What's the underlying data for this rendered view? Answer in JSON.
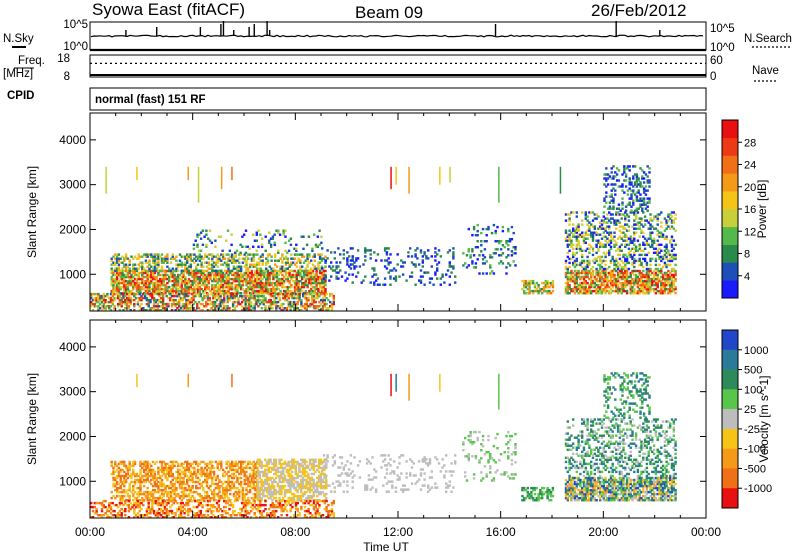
{
  "header": {
    "title": "Syowa East (fitACF)",
    "beam": "Beam 09",
    "date": "26/Feb/2012"
  },
  "left_labels": {
    "nsky": "N.Sky",
    "freq": "Freq.",
    "freq_unit": "[MHz]",
    "cpid": "CPID"
  },
  "right_labels": {
    "nsearch": "N.Search",
    "nave": "Nave"
  },
  "noise_panel": {
    "left_ticks": [
      "10^5",
      "10^0"
    ],
    "right_ticks": [
      "10^5",
      "10^0"
    ]
  },
  "freq_panel": {
    "left_ticks": [
      "18",
      "8"
    ],
    "right_ticks": [
      "60",
      "0"
    ],
    "freq_mhz": 10.5,
    "nave": 37
  },
  "cpid_text": "normal (fast) 151 RF",
  "chart_data": [
    {
      "type": "heatmap",
      "parameter": "Power",
      "ylabel": "Slant Range [km]",
      "ylim": [
        180,
        4600
      ],
      "y_ticks": [
        "1000",
        "2000",
        "3000",
        "4000"
      ],
      "colorbar": {
        "label": "Power [dB]",
        "ticks": [
          "4",
          "8",
          "12",
          "16",
          "20",
          "24",
          "28"
        ],
        "colors": [
          "#1a1aff",
          "#1e4fb8",
          "#2a8a4a",
          "#55b84a",
          "#c8cf3a",
          "#f5c418",
          "#f59a18",
          "#f07018",
          "#ee3a14",
          "#e81010"
        ]
      },
      "regions": [
        {
          "t": [
            0.8,
            9.2
          ],
          "r": [
            560,
            1060
          ],
          "color_range": [
            2,
            9
          ],
          "density": 0.75
        },
        {
          "t": [
            0.8,
            9.2
          ],
          "r": [
            1060,
            1460
          ],
          "color_range": [
            1,
            6
          ],
          "density": 0.45
        },
        {
          "t": [
            4.0,
            9.0
          ],
          "r": [
            1460,
            2000
          ],
          "color_range": [
            0,
            4
          ],
          "density": 0.12
        },
        {
          "t": [
            9.0,
            14.2
          ],
          "r": [
            750,
            1600
          ],
          "color_range": [
            0,
            2
          ],
          "density": 0.15
        },
        {
          "t": [
            14.5,
            16.6
          ],
          "r": [
            1000,
            2100
          ],
          "color_range": [
            0,
            3
          ],
          "density": 0.15
        },
        {
          "t": [
            16.8,
            18.0
          ],
          "r": [
            560,
            850
          ],
          "color_range": [
            2,
            7
          ],
          "density": 0.6
        },
        {
          "t": [
            18.5,
            22.8
          ],
          "r": [
            560,
            1100
          ],
          "color_range": [
            2,
            9
          ],
          "density": 0.72
        },
        {
          "t": [
            18.5,
            22.8
          ],
          "r": [
            1100,
            2400
          ],
          "color_range": [
            0,
            5
          ],
          "density": 0.35
        },
        {
          "t": [
            20.0,
            21.8
          ],
          "r": [
            2400,
            3400
          ],
          "color_range": [
            0,
            3
          ],
          "density": 0.3
        },
        {
          "t": [
            0.0,
            9.5
          ],
          "r": [
            180,
            560
          ],
          "color_range": [
            1,
            9
          ],
          "density": 0.55
        }
      ],
      "spikes": [
        {
          "t": 0.6,
          "r": [
            2800,
            3400
          ],
          "color": 4
        },
        {
          "t": 1.8,
          "r": [
            3100,
            3400
          ],
          "color": 5
        },
        {
          "t": 3.8,
          "r": [
            3100,
            3400
          ],
          "color": 6
        },
        {
          "t": 4.2,
          "r": [
            2600,
            3400
          ],
          "color": 4
        },
        {
          "t": 5.1,
          "r": [
            2900,
            3400
          ],
          "color": 6
        },
        {
          "t": 5.5,
          "r": [
            3100,
            3400
          ],
          "color": 7
        },
        {
          "t": 11.7,
          "r": [
            2900,
            3400
          ],
          "color": 9
        },
        {
          "t": 11.9,
          "r": [
            3000,
            3400
          ],
          "color": 5
        },
        {
          "t": 12.4,
          "r": [
            2800,
            3400
          ],
          "color": 6
        },
        {
          "t": 13.6,
          "r": [
            3000,
            3400
          ],
          "color": 5
        },
        {
          "t": 14.0,
          "r": [
            3050,
            3400
          ],
          "color": 4
        },
        {
          "t": 15.9,
          "r": [
            2600,
            3400
          ],
          "color": 3
        },
        {
          "t": 18.3,
          "r": [
            2800,
            3400
          ],
          "color": 2
        }
      ]
    },
    {
      "type": "heatmap",
      "parameter": "Velocity",
      "ylabel": "Slant Range [km]",
      "ylim": [
        180,
        4600
      ],
      "y_ticks": [
        "1000",
        "2000",
        "3000",
        "4000"
      ],
      "colorbar": {
        "label": "Velocity [m s^-1]",
        "ticks": [
          "1000",
          "500",
          "100",
          "25",
          "-25",
          "-100",
          "-500",
          "-1000"
        ],
        "colors": [
          "#2147c8",
          "#2a7a9a",
          "#2e8a5a",
          "#58c64a",
          "#bdbdbd",
          "#f6c418",
          "#f59a18",
          "#f07018",
          "#e81010"
        ]
      },
      "regions": [
        {
          "t": [
            0.8,
            6.5
          ],
          "r": [
            560,
            1460
          ],
          "color_range": [
            5,
            7
          ],
          "density": 0.55
        },
        {
          "t": [
            6.5,
            9.2
          ],
          "r": [
            560,
            1500
          ],
          "color_range": [
            4,
            5
          ],
          "density": 0.6
        },
        {
          "t": [
            9.0,
            14.2
          ],
          "r": [
            750,
            1600
          ],
          "color_range": [
            4,
            4
          ],
          "density": 0.15
        },
        {
          "t": [
            14.5,
            16.6
          ],
          "r": [
            1000,
            2100
          ],
          "color_range": [
            3,
            4
          ],
          "density": 0.12
        },
        {
          "t": [
            16.8,
            18.0
          ],
          "r": [
            560,
            850
          ],
          "color_range": [
            2,
            3
          ],
          "density": 0.6
        },
        {
          "t": [
            18.5,
            22.8
          ],
          "r": [
            560,
            1100
          ],
          "color_range": [
            0,
            6
          ],
          "density": 0.72
        },
        {
          "t": [
            18.5,
            22.8
          ],
          "r": [
            1100,
            2400
          ],
          "color_range": [
            1,
            4
          ],
          "density": 0.3
        },
        {
          "t": [
            20.0,
            21.8
          ],
          "r": [
            2400,
            3400
          ],
          "color_range": [
            1,
            3
          ],
          "density": 0.3
        },
        {
          "t": [
            0.0,
            9.5
          ],
          "r": [
            180,
            560
          ],
          "color_range": [
            5,
            8
          ],
          "density": 0.45
        }
      ],
      "spikes": [
        {
          "t": 1.8,
          "r": [
            3100,
            3400
          ],
          "color": 5
        },
        {
          "t": 3.8,
          "r": [
            3100,
            3400
          ],
          "color": 6
        },
        {
          "t": 5.5,
          "r": [
            3100,
            3400
          ],
          "color": 7
        },
        {
          "t": 11.7,
          "r": [
            2900,
            3400
          ],
          "color": 8
        },
        {
          "t": 11.9,
          "r": [
            3000,
            3400
          ],
          "color": 1
        },
        {
          "t": 12.4,
          "r": [
            2800,
            3400
          ],
          "color": 6
        },
        {
          "t": 13.6,
          "r": [
            3000,
            3400
          ],
          "color": 5
        },
        {
          "t": 15.9,
          "r": [
            2600,
            3400
          ],
          "color": 3
        }
      ]
    }
  ],
  "x_axis": {
    "label": "Time UT",
    "range_hours": [
      0,
      24
    ],
    "ticks": [
      {
        "h": 0,
        "label": "00:00"
      },
      {
        "h": 4,
        "label": "04:00"
      },
      {
        "h": 8,
        "label": "08:00"
      },
      {
        "h": 12,
        "label": "12:00"
      },
      {
        "h": 16,
        "label": "16:00"
      },
      {
        "h": 20,
        "label": "20:00"
      },
      {
        "h": 24,
        "label": "00:00"
      }
    ]
  }
}
